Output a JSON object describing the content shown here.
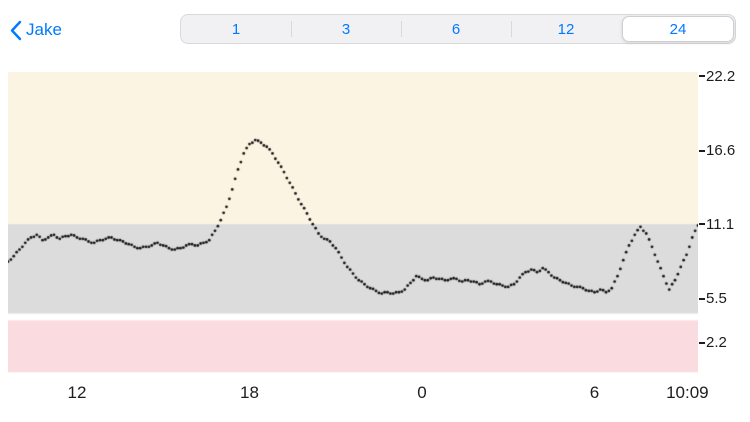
{
  "header": {
    "back_label": "Jake",
    "accent_color": "#007aff",
    "segments": [
      "1",
      "3",
      "6",
      "12",
      "24"
    ],
    "selected_segment": "24",
    "selected_index": 4
  },
  "chart_data": {
    "type": "scatter",
    "dot_color": "#141414",
    "x_window_hours": 24,
    "x_ticks": [
      {
        "label": "12",
        "hour": 2.4
      },
      {
        "label": "18",
        "hour": 8.4
      },
      {
        "label": "0",
        "hour": 14.4
      },
      {
        "label": "6",
        "hour": 20.4
      },
      {
        "label": "10:09",
        "hour": 24
      }
    ],
    "y_tick_labels": [
      "22.2",
      "16.6",
      "11.1",
      "5.5",
      "2.2"
    ],
    "y_tick_values": [
      22.2,
      16.6,
      11.1,
      5.5,
      2.2
    ],
    "ylim": [
      -0.2,
      22.5
    ],
    "bands": [
      {
        "name": "above-range",
        "from": 11.1,
        "to": 22.5,
        "color": "#fcf4e2"
      },
      {
        "name": "in-range",
        "from": 4.4,
        "to": 11.1,
        "color": "#dcdcdc"
      },
      {
        "name": "below-range",
        "from": 0.0,
        "to": 3.9,
        "color": "#fadce0"
      }
    ],
    "points": [
      [
        0.0,
        8.3
      ],
      [
        0.2,
        8.7
      ],
      [
        0.4,
        9.2
      ],
      [
        0.6,
        9.7
      ],
      [
        0.8,
        10.1
      ],
      [
        1.0,
        10.3
      ],
      [
        1.2,
        9.9
      ],
      [
        1.4,
        10.1
      ],
      [
        1.6,
        10.3
      ],
      [
        1.8,
        10.0
      ],
      [
        2.0,
        10.2
      ],
      [
        2.2,
        10.3
      ],
      [
        2.4,
        10.1
      ],
      [
        2.6,
        10.0
      ],
      [
        2.8,
        9.8
      ],
      [
        3.0,
        9.7
      ],
      [
        3.2,
        9.9
      ],
      [
        3.4,
        10.0
      ],
      [
        3.6,
        10.1
      ],
      [
        3.8,
        9.9
      ],
      [
        4.0,
        9.8
      ],
      [
        4.2,
        9.6
      ],
      [
        4.4,
        9.4
      ],
      [
        4.6,
        9.3
      ],
      [
        4.8,
        9.4
      ],
      [
        5.0,
        9.5
      ],
      [
        5.2,
        9.7
      ],
      [
        5.4,
        9.5
      ],
      [
        5.6,
        9.3
      ],
      [
        5.8,
        9.2
      ],
      [
        6.0,
        9.3
      ],
      [
        6.2,
        9.5
      ],
      [
        6.4,
        9.6
      ],
      [
        6.6,
        9.5
      ],
      [
        6.8,
        9.7
      ],
      [
        7.0,
        9.9
      ],
      [
        7.2,
        10.6
      ],
      [
        7.4,
        11.4
      ],
      [
        7.6,
        12.4
      ],
      [
        7.8,
        13.7
      ],
      [
        8.0,
        15.2
      ],
      [
        8.2,
        16.4
      ],
      [
        8.4,
        17.1
      ],
      [
        8.6,
        17.4
      ],
      [
        8.8,
        17.2
      ],
      [
        9.0,
        16.9
      ],
      [
        9.2,
        16.4
      ],
      [
        9.4,
        15.7
      ],
      [
        9.6,
        15.0
      ],
      [
        9.8,
        14.2
      ],
      [
        10.0,
        13.4
      ],
      [
        10.2,
        12.6
      ],
      [
        10.4,
        11.9
      ],
      [
        10.6,
        11.1
      ],
      [
        10.8,
        10.4
      ],
      [
        11.0,
        10.0
      ],
      [
        11.2,
        9.8
      ],
      [
        11.4,
        9.3
      ],
      [
        11.6,
        8.6
      ],
      [
        11.8,
        7.9
      ],
      [
        12.0,
        7.4
      ],
      [
        12.2,
        6.9
      ],
      [
        12.4,
        6.6
      ],
      [
        12.6,
        6.3
      ],
      [
        12.8,
        6.1
      ],
      [
        13.0,
        5.9
      ],
      [
        13.2,
        6.0
      ],
      [
        13.4,
        5.9
      ],
      [
        13.6,
        6.0
      ],
      [
        13.8,
        6.2
      ],
      [
        14.0,
        6.7
      ],
      [
        14.2,
        7.2
      ],
      [
        14.4,
        7.0
      ],
      [
        14.6,
        6.9
      ],
      [
        14.8,
        7.1
      ],
      [
        15.0,
        7.0
      ],
      [
        15.2,
        6.9
      ],
      [
        15.4,
        7.0
      ],
      [
        15.6,
        7.0
      ],
      [
        15.8,
        6.8
      ],
      [
        16.0,
        6.9
      ],
      [
        16.2,
        6.8
      ],
      [
        16.4,
        6.6
      ],
      [
        16.6,
        6.8
      ],
      [
        16.8,
        6.8
      ],
      [
        17.0,
        6.6
      ],
      [
        17.2,
        6.5
      ],
      [
        17.4,
        6.4
      ],
      [
        17.6,
        6.6
      ],
      [
        17.8,
        7.1
      ],
      [
        18.0,
        7.5
      ],
      [
        18.2,
        7.7
      ],
      [
        18.4,
        7.5
      ],
      [
        18.6,
        7.8
      ],
      [
        18.8,
        7.5
      ],
      [
        19.0,
        7.1
      ],
      [
        19.2,
        6.9
      ],
      [
        19.4,
        6.7
      ],
      [
        19.6,
        6.5
      ],
      [
        19.8,
        6.4
      ],
      [
        20.0,
        6.3
      ],
      [
        20.2,
        6.1
      ],
      [
        20.4,
        6.0
      ],
      [
        20.6,
        6.2
      ],
      [
        20.8,
        6.0
      ],
      [
        21.0,
        6.3
      ],
      [
        21.2,
        7.2
      ],
      [
        21.4,
        8.4
      ],
      [
        21.6,
        9.5
      ],
      [
        21.8,
        10.3
      ],
      [
        22.0,
        10.9
      ],
      [
        22.2,
        10.4
      ],
      [
        22.4,
        9.4
      ],
      [
        22.6,
        8.3
      ],
      [
        22.8,
        7.2
      ],
      [
        23.0,
        6.2
      ],
      [
        23.2,
        6.9
      ],
      [
        23.4,
        7.9
      ],
      [
        23.6,
        8.8
      ],
      [
        23.8,
        10.1
      ],
      [
        24.0,
        11.0
      ]
    ]
  }
}
